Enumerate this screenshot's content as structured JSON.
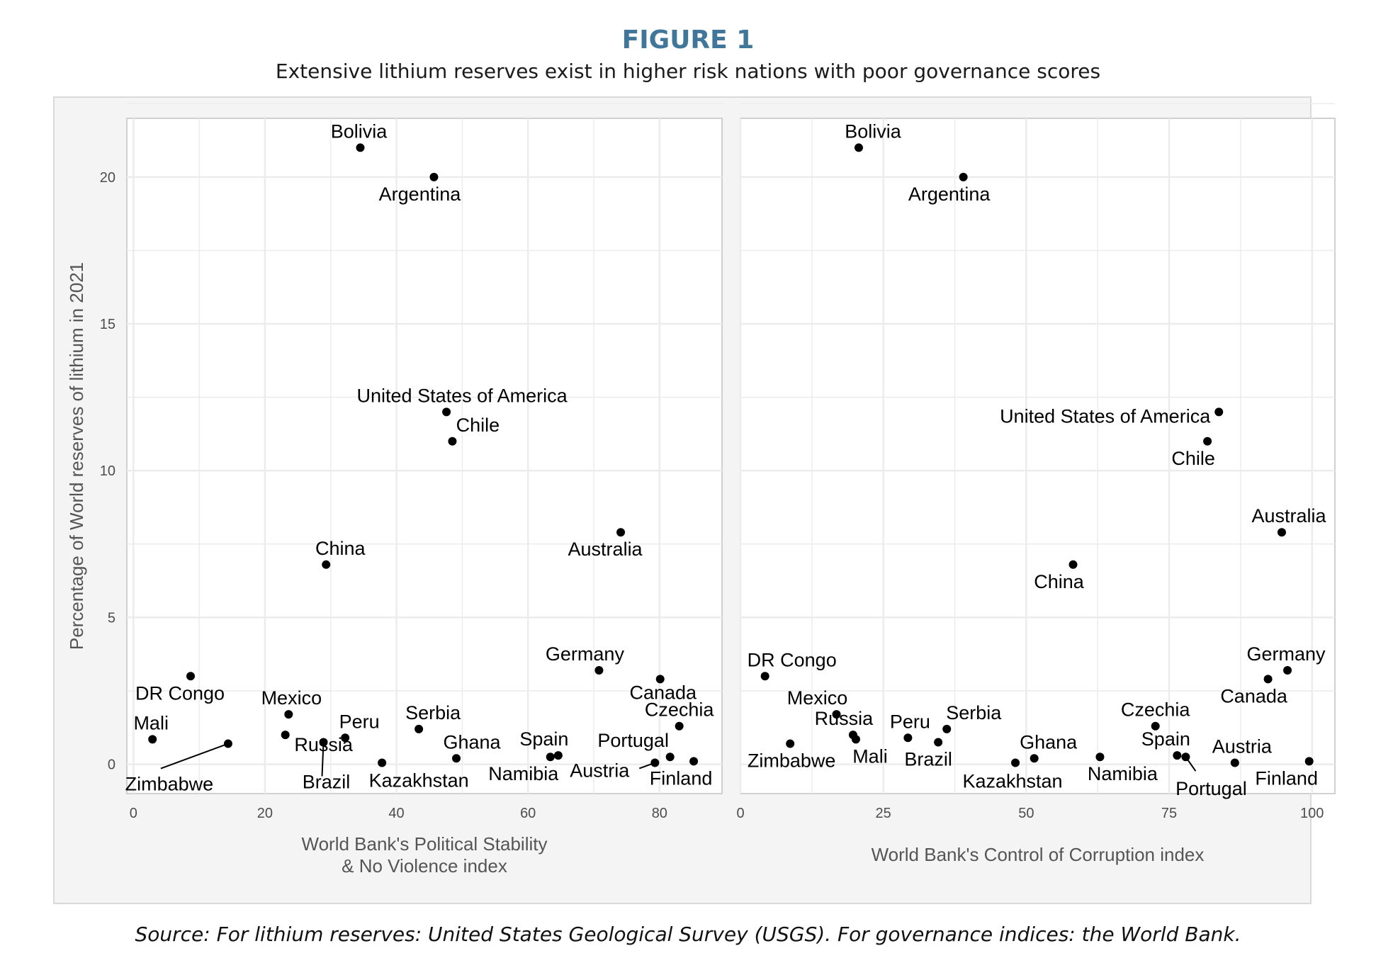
{
  "figure": {
    "title": "FIGURE 1",
    "subtitle": "Extensive lithium reserves exist in higher risk nations with poor governance scores",
    "source": "Source: For lithium reserves: United States Geological Survey (USGS). For governance indices: the World Bank."
  },
  "colors": {
    "title": "#3f7699",
    "panel_background": "#f4f4f4",
    "plot_background": "#ffffff",
    "grid": "#ececec",
    "point": "#000000"
  },
  "chart_data": [
    {
      "type": "scatter",
      "title": "",
      "xlabel_lines": [
        "World Bank's Political Stability",
        "& No Violence index"
      ],
      "ylabel": "Percentage of World reserves of lithium in 2021",
      "xlim": [
        -1,
        89.5
      ],
      "ylim": [
        -1,
        22
      ],
      "xticks": [
        0,
        20,
        40,
        60,
        80
      ],
      "yticks": [
        0,
        5,
        10,
        15,
        20
      ],
      "grid": true,
      "points": [
        {
          "label": "Bolivia",
          "x": 34.5,
          "y": 21.0
        },
        {
          "label": "Argentina",
          "x": 45.7,
          "y": 20.0
        },
        {
          "label": "United States of America",
          "x": 47.6,
          "y": 12.0
        },
        {
          "label": "Chile",
          "x": 48.5,
          "y": 11.0
        },
        {
          "label": "China",
          "x": 29.3,
          "y": 6.8
        },
        {
          "label": "Australia",
          "x": 74.1,
          "y": 7.9
        },
        {
          "label": "DR Congo",
          "x": 8.7,
          "y": 3.0
        },
        {
          "label": "Mali",
          "x": 2.9,
          "y": 0.85
        },
        {
          "label": "Zimbabwe",
          "x": 14.4,
          "y": 0.7
        },
        {
          "label": "Russia",
          "x": 23.1,
          "y": 1.0
        },
        {
          "label": "Mexico",
          "x": 23.6,
          "y": 1.7
        },
        {
          "label": "Brazil",
          "x": 28.9,
          "y": 0.75
        },
        {
          "label": "Peru",
          "x": 32.2,
          "y": 0.9
        },
        {
          "label": "Kazakhstan",
          "x": 37.8,
          "y": 0.05
        },
        {
          "label": "Serbia",
          "x": 43.4,
          "y": 1.2
        },
        {
          "label": "Ghana",
          "x": 49.1,
          "y": 0.2
        },
        {
          "label": "Spain",
          "x": 64.6,
          "y": 0.3
        },
        {
          "label": "Namibia",
          "x": 63.4,
          "y": 0.25
        },
        {
          "label": "Germany",
          "x": 70.8,
          "y": 3.2
        },
        {
          "label": "Canada",
          "x": 80.1,
          "y": 2.9
        },
        {
          "label": "Czechia",
          "x": 83.0,
          "y": 1.3
        },
        {
          "label": "Portugal",
          "x": 81.6,
          "y": 0.25
        },
        {
          "label": "Austria",
          "x": 79.3,
          "y": 0.05
        },
        {
          "label": "Finland",
          "x": 85.2,
          "y": 0.1
        }
      ]
    },
    {
      "type": "scatter",
      "title": "",
      "xlabel_lines": [
        "World Bank's Control of Corruption index"
      ],
      "ylabel": "",
      "xlim": [
        0,
        104
      ],
      "ylim": [
        -1,
        22
      ],
      "xticks": [
        0,
        25,
        50,
        75,
        100
      ],
      "grid": true,
      "points": [
        {
          "label": "Bolivia",
          "x": 20.7,
          "y": 21.0
        },
        {
          "label": "Argentina",
          "x": 39.0,
          "y": 20.0
        },
        {
          "label": "United States of America",
          "x": 83.7,
          "y": 12.0
        },
        {
          "label": "Chile",
          "x": 81.7,
          "y": 11.0
        },
        {
          "label": "Australia",
          "x": 94.7,
          "y": 7.9
        },
        {
          "label": "China",
          "x": 58.2,
          "y": 6.8
        },
        {
          "label": "DR Congo",
          "x": 4.3,
          "y": 3.0
        },
        {
          "label": "Mexico",
          "x": 16.8,
          "y": 1.7
        },
        {
          "label": "Russia",
          "x": 19.7,
          "y": 1.0
        },
        {
          "label": "Mali",
          "x": 20.2,
          "y": 0.85
        },
        {
          "label": "Zimbabwe",
          "x": 8.7,
          "y": 0.7
        },
        {
          "label": "Peru",
          "x": 29.3,
          "y": 0.9
        },
        {
          "label": "Brazil",
          "x": 34.6,
          "y": 0.75
        },
        {
          "label": "Serbia",
          "x": 36.1,
          "y": 1.2
        },
        {
          "label": "Ghana",
          "x": 51.4,
          "y": 0.2
        },
        {
          "label": "Kazakhstan",
          "x": 48.1,
          "y": 0.05
        },
        {
          "label": "Namibia",
          "x": 62.9,
          "y": 0.25
        },
        {
          "label": "Czechia",
          "x": 72.6,
          "y": 1.3
        },
        {
          "label": "Spain",
          "x": 76.4,
          "y": 0.3
        },
        {
          "label": "Portugal",
          "x": 77.9,
          "y": 0.25
        },
        {
          "label": "Austria",
          "x": 86.5,
          "y": 0.05
        },
        {
          "label": "Germany",
          "x": 95.7,
          "y": 3.2
        },
        {
          "label": "Canada",
          "x": 92.3,
          "y": 2.9
        },
        {
          "label": "Finland",
          "x": 99.5,
          "y": 0.1
        }
      ]
    }
  ]
}
